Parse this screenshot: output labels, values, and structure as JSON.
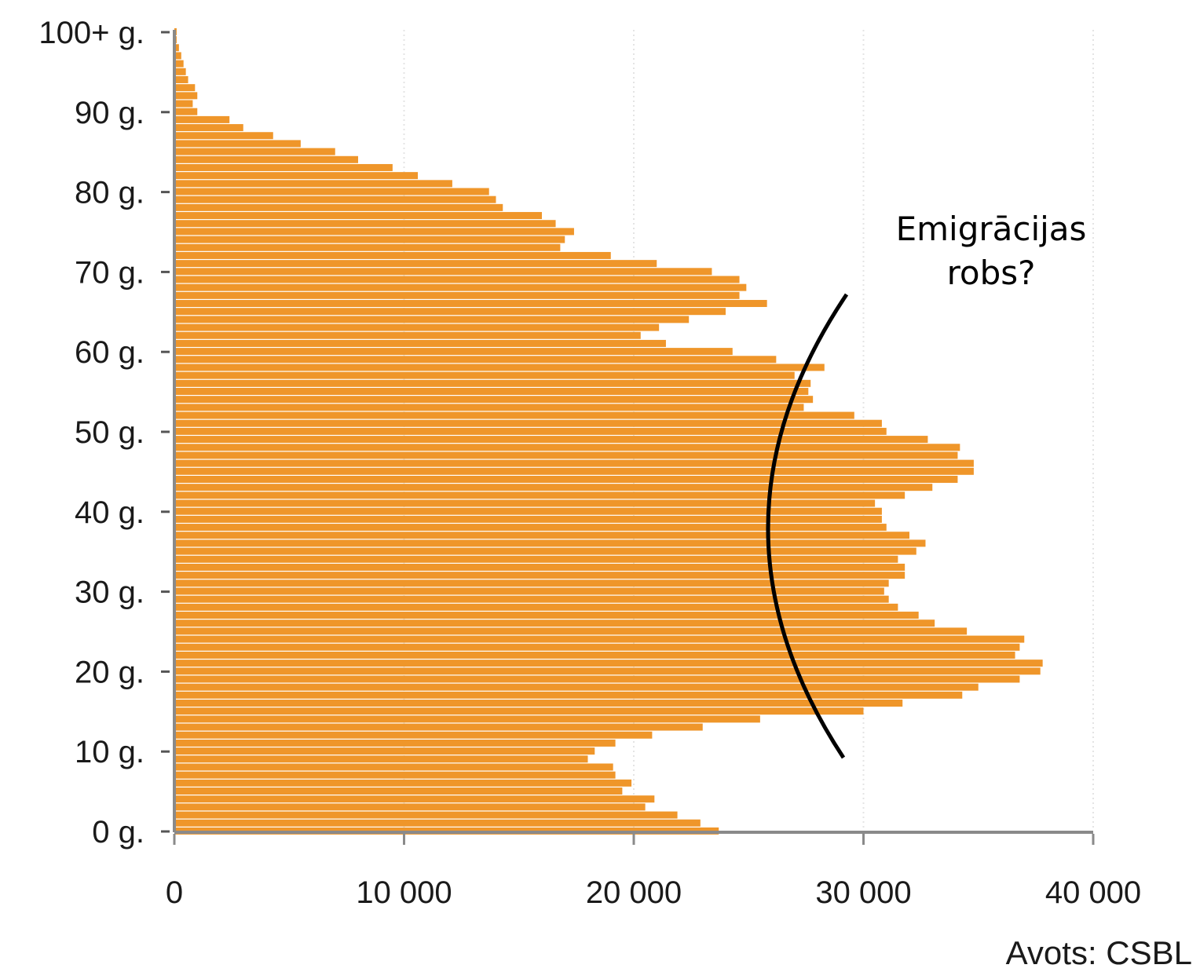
{
  "chart_data": {
    "type": "bar",
    "orientation": "horizontal",
    "ages": [
      0,
      1,
      2,
      3,
      4,
      5,
      6,
      7,
      8,
      9,
      10,
      11,
      12,
      13,
      14,
      15,
      16,
      17,
      18,
      19,
      20,
      21,
      22,
      23,
      24,
      25,
      26,
      27,
      28,
      29,
      30,
      31,
      32,
      33,
      34,
      35,
      36,
      37,
      38,
      39,
      40,
      41,
      42,
      43,
      44,
      45,
      46,
      47,
      48,
      49,
      50,
      51,
      52,
      53,
      54,
      55,
      56,
      57,
      58,
      59,
      60,
      61,
      62,
      63,
      64,
      65,
      66,
      67,
      68,
      69,
      70,
      71,
      72,
      73,
      74,
      75,
      76,
      77,
      78,
      79,
      80,
      81,
      82,
      83,
      84,
      85,
      86,
      87,
      88,
      89,
      90,
      91,
      92,
      93,
      94,
      95,
      96,
      97,
      98,
      99,
      100
    ],
    "values": [
      23700,
      22900,
      21900,
      20500,
      20900,
      19500,
      19900,
      19200,
      19100,
      18000,
      18300,
      19200,
      20800,
      23000,
      25500,
      30000,
      31700,
      34300,
      35000,
      36800,
      37700,
      37800,
      36600,
      36800,
      37000,
      34500,
      33100,
      32400,
      31500,
      31100,
      30900,
      31100,
      31800,
      31800,
      31500,
      32300,
      32700,
      32000,
      31000,
      30800,
      30800,
      30500,
      31800,
      33000,
      34100,
      34800,
      34800,
      34100,
      34200,
      32800,
      31000,
      30800,
      29600,
      27400,
      27800,
      27600,
      27700,
      27000,
      28300,
      26200,
      24300,
      21400,
      20300,
      21100,
      22400,
      24000,
      25800,
      24600,
      24900,
      24600,
      23400,
      21000,
      19000,
      16800,
      17000,
      17400,
      16600,
      16000,
      14300,
      14000,
      13700,
      12100,
      10600,
      9500,
      8000,
      7000,
      5500,
      4300,
      3000,
      2400,
      1000,
      800,
      1000,
      900,
      600,
      500,
      400,
      300,
      200,
      100,
      100
    ],
    "y_tick_labels": [
      "0 g.",
      "10 g.",
      "20 g.",
      "30 g.",
      "40 g.",
      "50 g.",
      "60 g.",
      "70 g.",
      "80 g.",
      "90 g.",
      "100+ g."
    ],
    "y_tick_values": [
      0,
      10,
      20,
      30,
      40,
      50,
      60,
      70,
      80,
      90,
      100
    ],
    "x_tick_labels": [
      "0",
      "10 000",
      "20 000",
      "30 000",
      "40 000"
    ],
    "x_tick_values": [
      0,
      10000,
      20000,
      30000,
      40000
    ],
    "xlim": [
      0,
      40000
    ],
    "ylim": [
      0,
      100
    ],
    "grid": "vertical dotted",
    "bar_color": "#ef962a",
    "annotation": {
      "line1": "Emigrācijas",
      "line2": "robs?",
      "spans_ages": [
        10,
        67
      ]
    },
    "source": "Avots: CSBL"
  }
}
